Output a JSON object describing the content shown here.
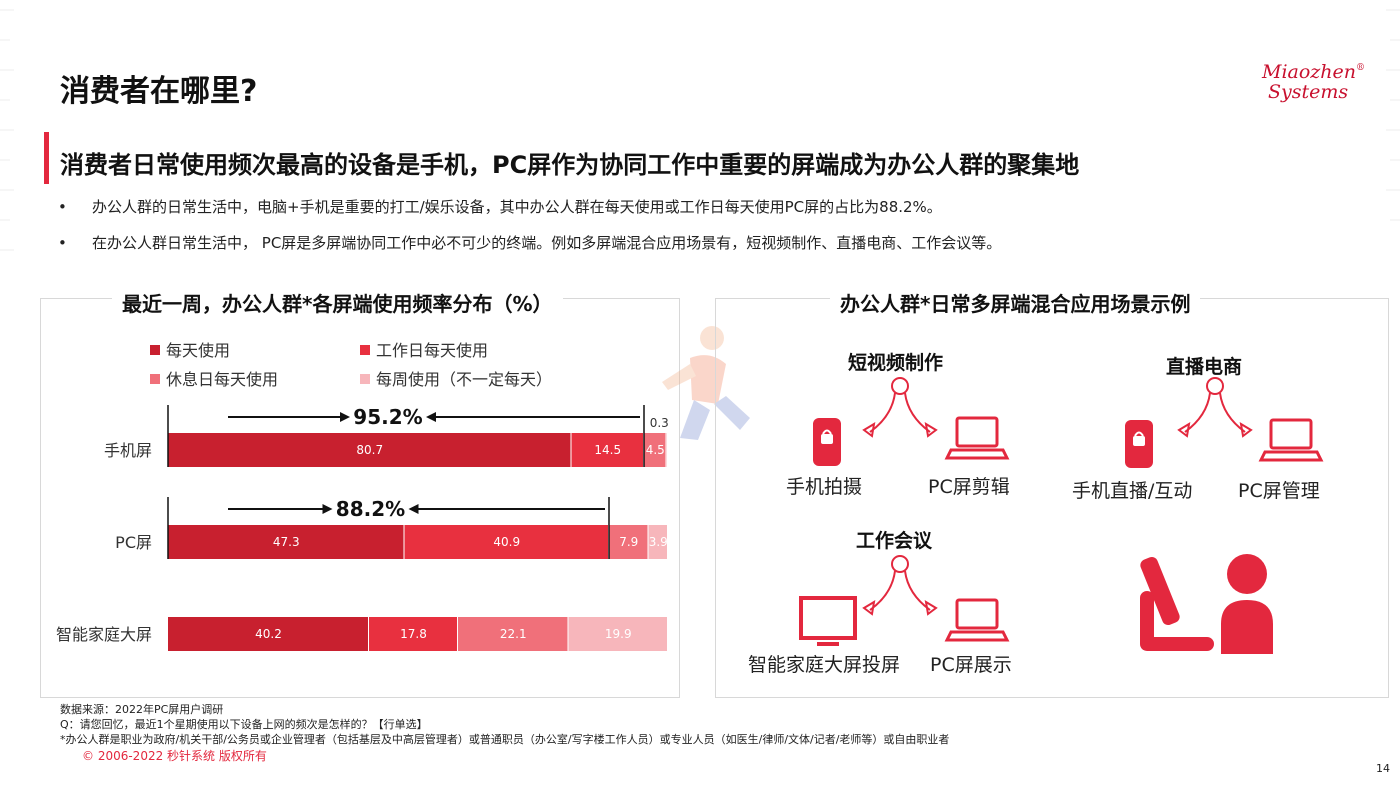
{
  "page": {
    "title": "消费者在哪里?",
    "logo_line1": "Miaozhen",
    "logo_line2": "Systems",
    "logo_reg": "®",
    "subtitle": "消费者日常使用频次最高的设备是手机，PC屏作为协同工作中重要的屏端成为办公人群的聚集地",
    "bullet_mark": "•",
    "bullets": [
      "办公人群的日常生活中，电脑+手机是重要的打工/娱乐设备，其中办公人群在每天使用或工作日每天使用PC屏的占比为88.2%。",
      "在办公人群日常生活中， PC屏是多屏端协同工作中必不可少的终端。例如多屏端混合应用场景有，短视频制作、直播电商、工作会议等。"
    ],
    "page_number": "14"
  },
  "left_panel": {
    "title": "最近一周，办公人群*各屏端使用频率分布（%）"
  },
  "chart_data": {
    "type": "bar",
    "orientation": "horizontal",
    "stacked": true,
    "title": "最近一周，办公人群*各屏端使用频率分布（%）",
    "categories": [
      "手机屏",
      "PC屏",
      "智能家庭大屏"
    ],
    "series": [
      {
        "name": "每天使用",
        "color": "#c8202f",
        "values": [
          80.7,
          47.3,
          40.2
        ]
      },
      {
        "name": "工作日每天使用",
        "color": "#e8303f",
        "values": [
          14.5,
          40.9,
          17.8
        ]
      },
      {
        "name": "休息日每天使用",
        "color": "#f0707a",
        "values": [
          4.5,
          7.9,
          22.1
        ]
      },
      {
        "name": "每周使用（不一定每天）",
        "color": "#f7b6bb",
        "values": [
          0.3,
          3.9,
          19.9
        ]
      }
    ],
    "annotations": [
      {
        "category": "手机屏",
        "text": "95.2%"
      },
      {
        "category": "PC屏",
        "text": "88.2%"
      }
    ],
    "legend_position": "top",
    "grid": false
  },
  "right_panel": {
    "title": "办公人群*日常多屏端混合应用场景示例",
    "scenarios": [
      {
        "heading": "短视频制作",
        "left": "手机拍摄",
        "right": "PC屏剪辑"
      },
      {
        "heading": "直播电商",
        "left": "手机直播/互动",
        "right": "PC屏管理"
      },
      {
        "heading": "工作会议",
        "left": "智能家庭大屏投屏",
        "right": "PC屏展示"
      }
    ]
  },
  "footer": {
    "source": "数据来源：2022年PC屏用户调研",
    "question": "Q：请您回忆，最近1个星期使用以下设备上网的频次是怎样的？【行单选】",
    "note": "*办公人群是职业为政府/机关干部/公务员或企业管理者（包括基层及中高层管理者）或普通职员（办公室/写字楼工作人员）或专业人员（如医生/律师/文体/记者/老师等）或自由职业者",
    "copyright": "© 2006-2022 秒针系统 版权所有"
  },
  "colors": {
    "accent": "#e3283e",
    "icon": "#e3283e"
  }
}
